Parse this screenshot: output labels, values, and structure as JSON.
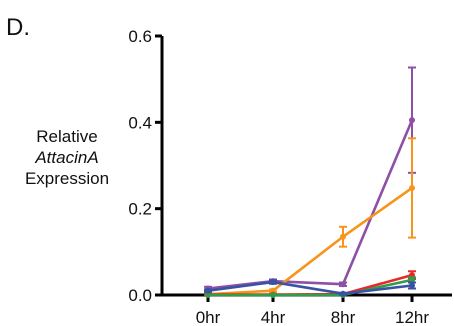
{
  "chart_data": {
    "type": "line",
    "panel_label": "D.",
    "ylabel_lines": [
      "Relative",
      "AttacinA",
      "Expression"
    ],
    "xlabel": "",
    "categories": [
      "0hr",
      "4hr",
      "8hr",
      "12hr"
    ],
    "ylim": [
      0,
      0.6
    ],
    "yticks": [
      "0.0",
      "0.2",
      "0.4",
      "0.6"
    ],
    "grid": false,
    "legend": "none",
    "series": [
      {
        "color": "#8e4fa6",
        "values": [
          0.015,
          0.032,
          0.025,
          0.405
        ],
        "errors": [
          0.004,
          0.004,
          0.004,
          0.122
        ]
      },
      {
        "color": "#f7941d",
        "values": [
          0.002,
          0.01,
          0.135,
          0.248
        ],
        "errors": [
          0.002,
          0.003,
          0.023,
          0.115
        ]
      },
      {
        "color": "#e8282a",
        "values": [
          0.001,
          0.001,
          0.002,
          0.046
        ],
        "errors": [
          0.001,
          0.001,
          0.001,
          0.009
        ]
      },
      {
        "color": "#2e9e48",
        "values": [
          0.0,
          0.0,
          0.0,
          0.035
        ],
        "errors": [
          0.0,
          0.0,
          0.0,
          0.006
        ]
      },
      {
        "color": "#3a52a3",
        "values": [
          0.01,
          0.03,
          0.003,
          0.022
        ],
        "errors": [
          0.003,
          0.004,
          0.002,
          0.007
        ]
      }
    ]
  }
}
